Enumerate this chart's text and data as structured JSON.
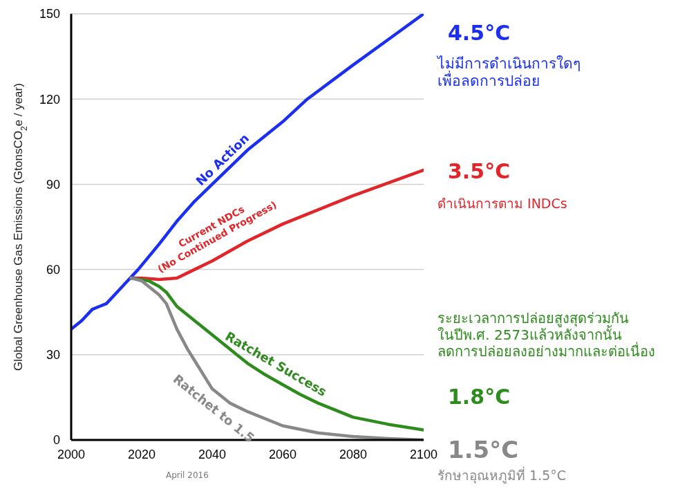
{
  "chart_data": {
    "type": "line",
    "ylabel": "Global Greenhouse Gas Emissions  (GtonsCO$_{2}$e / year)",
    "xlim": [
      2000,
      2100
    ],
    "xticks": [
      2000,
      2020,
      2040,
      2060,
      2080,
      2100
    ],
    "ylim": [
      0,
      150
    ],
    "yticks": [
      0,
      30,
      60,
      90,
      120,
      150
    ],
    "grid": "y",
    "line_style": "solid",
    "series": [
      {
        "name": "No Action",
        "color": "#1a2ff0",
        "x": [
          2000,
          2003,
          2006,
          2008,
          2010,
          2013,
          2016,
          2019,
          2025,
          2030,
          2035,
          2040,
          2050,
          2060,
          2067,
          2080,
          2090,
          2100
        ],
        "values": [
          39,
          42,
          46,
          47,
          48,
          52,
          56,
          60,
          69,
          77,
          84,
          90,
          102,
          112,
          120,
          132,
          141,
          150
        ]
      },
      {
        "name": "Current NDCs\n(No Continued Progress)",
        "color": "#e0262a",
        "x": [
          2017,
          2020,
          2025,
          2030,
          2035,
          2040,
          2050,
          2060,
          2070,
          2080,
          2090,
          2100
        ],
        "values": [
          57,
          57,
          56.5,
          57,
          60,
          63,
          70,
          76,
          81,
          86,
          90.5,
          95
        ]
      },
      {
        "name": "Ratchet Success",
        "color": "#2e8b1e",
        "x": [
          2017,
          2022,
          2025,
          2027,
          2030,
          2035,
          2040,
          2045,
          2050,
          2055,
          2060,
          2065,
          2070,
          2080,
          2090,
          2100
        ],
        "values": [
          57,
          56,
          54,
          52,
          47,
          42,
          37,
          32,
          27,
          23,
          19.5,
          16,
          13,
          8,
          5.5,
          3.5
        ]
      },
      {
        "name": "Ratchet to 1.5",
        "color": "#888888",
        "x": [
          2017,
          2020,
          2023,
          2025,
          2027,
          2030,
          2033,
          2035,
          2040,
          2045,
          2050,
          2060,
          2070,
          2080,
          2090,
          2100
        ],
        "values": [
          57,
          56,
          53,
          51,
          48,
          39,
          32,
          28,
          18,
          13,
          10,
          5,
          2.5,
          1.2,
          0.5,
          0
        ]
      }
    ],
    "annotations": [
      "4.5°C",
      "ไม่มีการดำเนินการใดๆ\nเพื่อลดการปล่อย",
      "3.5°C",
      "ดำเนินการตาม INDCs",
      "ระยะเวลาการปล่อยสูงสุดร่วมกัน\nในปีพ.ศ. 2573แล้วหลังจากนั้น\nลดการปล่อยลงอย่างมากและต่อเนื่อง",
      "1.8°C",
      "1.5°C",
      "รักษาอุณหภูมิที่ 1.5°C",
      "April 2016"
    ]
  }
}
